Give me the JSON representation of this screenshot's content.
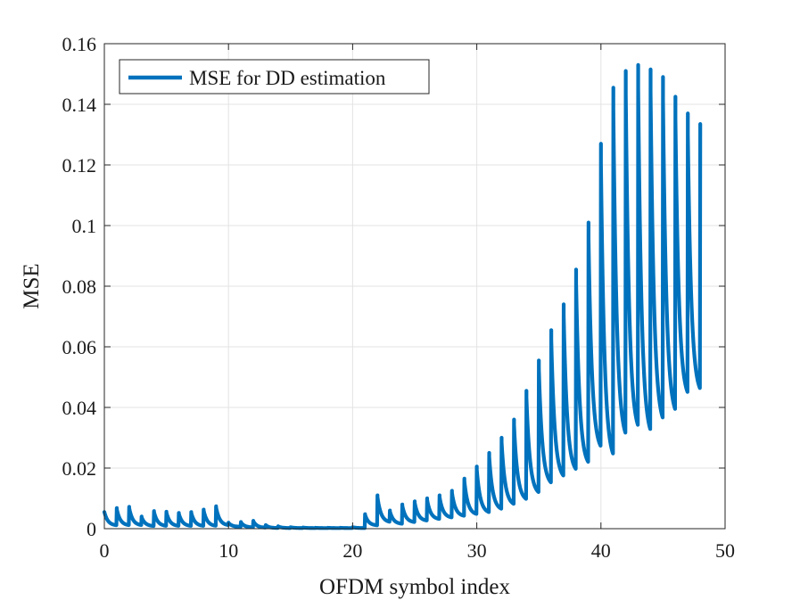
{
  "chart_data": {
    "type": "line",
    "title": "",
    "xlabel": "OFDM symbol index",
    "ylabel": "MSE",
    "xlim": [
      0,
      50
    ],
    "ylim": [
      0,
      0.16
    ],
    "xticks": [
      0,
      10,
      20,
      30,
      40,
      50
    ],
    "xtick_labels": [
      "0",
      "10",
      "20",
      "30",
      "40",
      "50"
    ],
    "yticks": [
      0,
      0.02,
      0.04,
      0.06,
      0.08,
      0.1,
      0.12,
      0.14,
      0.16
    ],
    "ytick_labels": [
      "0",
      "0.02",
      "0.04",
      "0.06",
      "0.08",
      "0.1",
      "0.12",
      "0.14",
      "0.16"
    ],
    "grid": true,
    "legend_position": "top-left",
    "series": [
      {
        "name": "MSE for DD estimation",
        "color": "#0072BD",
        "description_style": "sawtooth: each symbol jumps to a peak then decays to a trough",
        "peaks": [
          0.0055,
          0.0068,
          0.0072,
          0.004,
          0.0058,
          0.0056,
          0.0052,
          0.0055,
          0.0063,
          0.0074,
          0.002,
          0.0022,
          0.0026,
          0.0012,
          0.0008,
          0.0005,
          0.0004,
          0.0003,
          0.0003,
          0.0003,
          0.0005,
          0.0048,
          0.011,
          0.006,
          0.008,
          0.009,
          0.01,
          0.011,
          0.0125,
          0.0165,
          0.0205,
          0.025,
          0.03,
          0.036,
          0.0455,
          0.0555,
          0.0655,
          0.074,
          0.0855,
          0.101,
          0.127,
          0.1455,
          0.151,
          0.153,
          0.1515,
          0.149,
          0.1425,
          0.137,
          0.1335
        ],
        "troughs": [
          0.001,
          0.001,
          0.001,
          0.0008,
          0.0008,
          0.0008,
          0.0008,
          0.0008,
          0.0008,
          0.001,
          0.0006,
          0.0004,
          0.0003,
          0.0002,
          0.0002,
          0.0002,
          0.0002,
          0.0002,
          0.0002,
          0.0002,
          0.0002,
          0.001,
          0.002,
          0.0015,
          0.002,
          0.0025,
          0.003,
          0.0035,
          0.004,
          0.0045,
          0.005,
          0.006,
          0.0075,
          0.009,
          0.011,
          0.014,
          0.016,
          0.018,
          0.02,
          0.025,
          0.0215,
          0.028,
          0.0305,
          0.029,
          0.033,
          0.036,
          0.042,
          0.0435
        ]
      }
    ]
  }
}
